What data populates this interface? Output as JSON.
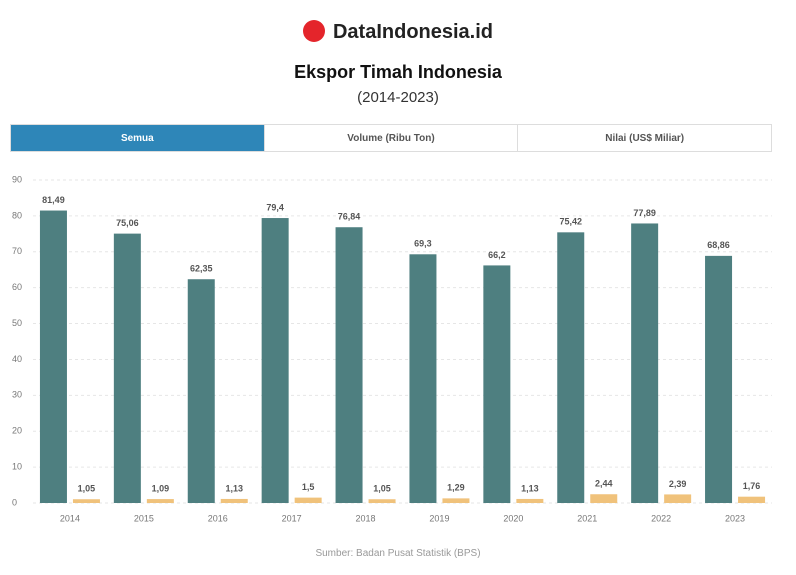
{
  "header": {
    "brand": "DataIndonesia.id"
  },
  "tabs": [
    "Semua",
    "Volume (Ribu Ton)",
    "Nilai (US$ Miliar)"
  ],
  "chart_data": {
    "type": "bar",
    "title": "Ekspor Timah Indonesia",
    "subtitle": "(2014-2023)",
    "categories": [
      "2014",
      "2015",
      "2016",
      "2017",
      "2018",
      "2019",
      "2020",
      "2021",
      "2022",
      "2023"
    ],
    "series": [
      {
        "color": "#4e7f80",
        "values": [
          81.49,
          75.06,
          62.35,
          79.4,
          76.84,
          69.3,
          66.2,
          75.42,
          77.89,
          68.86
        ],
        "value_labels": [
          "81,49",
          "75,06",
          "62,35",
          "79,4",
          "76,84",
          "69,3",
          "66,2",
          "75,42",
          "77,89",
          "68,86"
        ]
      },
      {
        "color": "#f0c27b",
        "values": [
          1.05,
          1.09,
          1.13,
          1.5,
          1.05,
          1.29,
          1.13,
          2.44,
          2.39,
          1.76
        ],
        "value_labels": [
          "1,05",
          "1,09",
          "1,13",
          "1,5",
          "1,05",
          "1,29",
          "1,13",
          "2,44",
          "2,39",
          "1,76"
        ]
      }
    ],
    "ylim": [
      0,
      90
    ],
    "yticks": [
      0,
      10,
      20,
      30,
      40,
      50,
      60,
      70,
      80,
      90
    ],
    "grid": true,
    "source": "Sumber: Badan Pusat Statistik (BPS)"
  }
}
